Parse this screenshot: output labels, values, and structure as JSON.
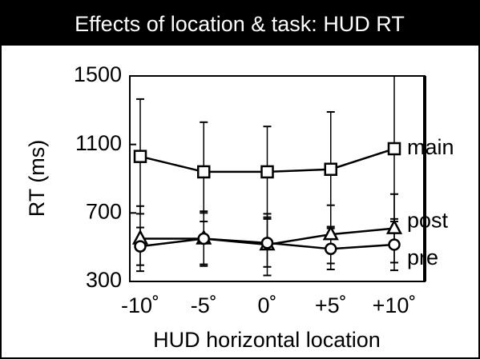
{
  "chart_data": {
    "type": "line",
    "title": "Effects of location & task: HUD RT",
    "x_label": "HUD horizontal location",
    "y_label": "RT (ms)",
    "categories": [
      "-10˚",
      "-5˚",
      "0˚",
      "+5˚",
      "+10˚"
    ],
    "series": [
      {
        "name": "main",
        "color": "#000000",
        "marker": "square",
        "values": [
          1030,
          940,
          940,
          955,
          1075
        ],
        "errors": [
          335,
          290,
          265,
          335,
          425
        ]
      },
      {
        "name": "post",
        "color": "#000000",
        "marker": "triangle",
        "values": [
          550,
          550,
          515,
          575,
          610
        ],
        "errors": [
          190,
          160,
          180,
          170,
          200
        ]
      },
      {
        "name": "pre",
        "color": "#000000",
        "marker": "circle",
        "values": [
          505,
          550,
          525,
          490,
          515
        ],
        "errors": [
          110,
          150,
          140,
          120,
          150
        ]
      }
    ],
    "ylim": [
      300,
      1500
    ],
    "yticks": [
      300,
      700,
      1100,
      1500
    ],
    "grid": false
  }
}
